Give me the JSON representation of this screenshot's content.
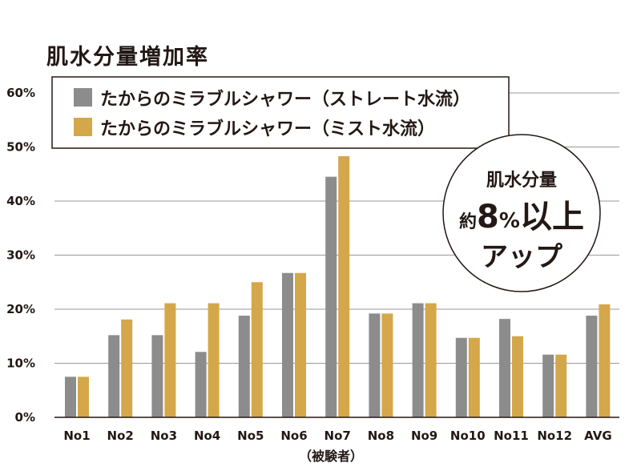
{
  "chart_data": {
    "type": "bar",
    "title": "肌水分量増加率",
    "xlabel": "（被験者）",
    "ylabel": "",
    "ylim": [
      0,
      60
    ],
    "ytick_step": 10,
    "ytick_suffix": "%",
    "grid": true,
    "legend_position": "top-left",
    "categories": [
      "No1",
      "No2",
      "No3",
      "No4",
      "No5",
      "No6",
      "No7",
      "No8",
      "No9",
      "No10",
      "No11",
      "No12",
      "AVG"
    ],
    "series": [
      {
        "name": "たからのミラブルシャワー（ストレート水流）",
        "color": "#8c8c8c",
        "values": [
          7.5,
          15.2,
          15.2,
          12.1,
          18.8,
          26.7,
          44.5,
          19.2,
          21.1,
          14.7,
          18.2,
          11.6,
          18.8
        ]
      },
      {
        "name": "たからのミラブルシャワー（ミスト水流）",
        "color": "#d4a74a",
        "values": [
          7.5,
          18.1,
          21.1,
          21.1,
          25.0,
          26.7,
          48.3,
          19.2,
          21.1,
          14.7,
          15.0,
          11.6,
          20.9
        ]
      }
    ],
    "annotation": {
      "line1": "肌水分量",
      "prefix": "約",
      "number": "8",
      "unit": "%",
      "suffix": "以上",
      "line3": "アップ"
    }
  }
}
